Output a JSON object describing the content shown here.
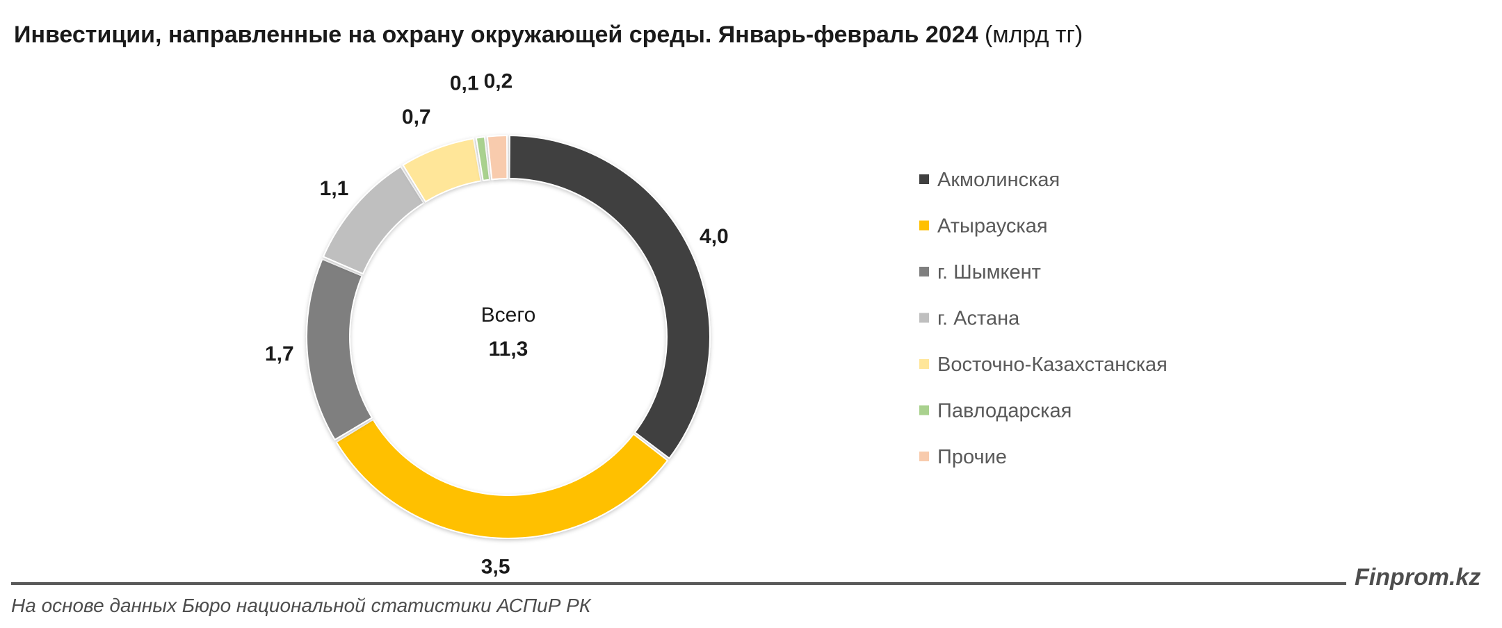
{
  "title": {
    "main": "Инвестиции, направленные на охрану окружающей среды. Январь-февраль 2024",
    "unit": "(млрд тг)"
  },
  "chart_data": {
    "type": "pie",
    "variant": "donut",
    "categories": [
      "Акмолинская",
      "Атырауская",
      "г. Шымкент",
      "г. Астана",
      "Восточно-Казахстанская",
      "Павлодарская",
      "Прочие"
    ],
    "values": [
      4.0,
      3.5,
      1.7,
      1.1,
      0.7,
      0.1,
      0.2
    ],
    "labels": [
      "4,0",
      "3,5",
      "1,7",
      "1,1",
      "0,7",
      "0,1",
      "0,2"
    ],
    "colors": [
      "#404040",
      "#ffc000",
      "#7f7f7f",
      "#bfbfbf",
      "#ffe699",
      "#a9d18e",
      "#f8cbad"
    ],
    "center": {
      "label": "Всего",
      "value": "11,3"
    },
    "legend": "right"
  },
  "footer": {
    "brand": "Finprom.kz",
    "source": "На основе данных Бюро национальной статистики АСПиР РК"
  }
}
